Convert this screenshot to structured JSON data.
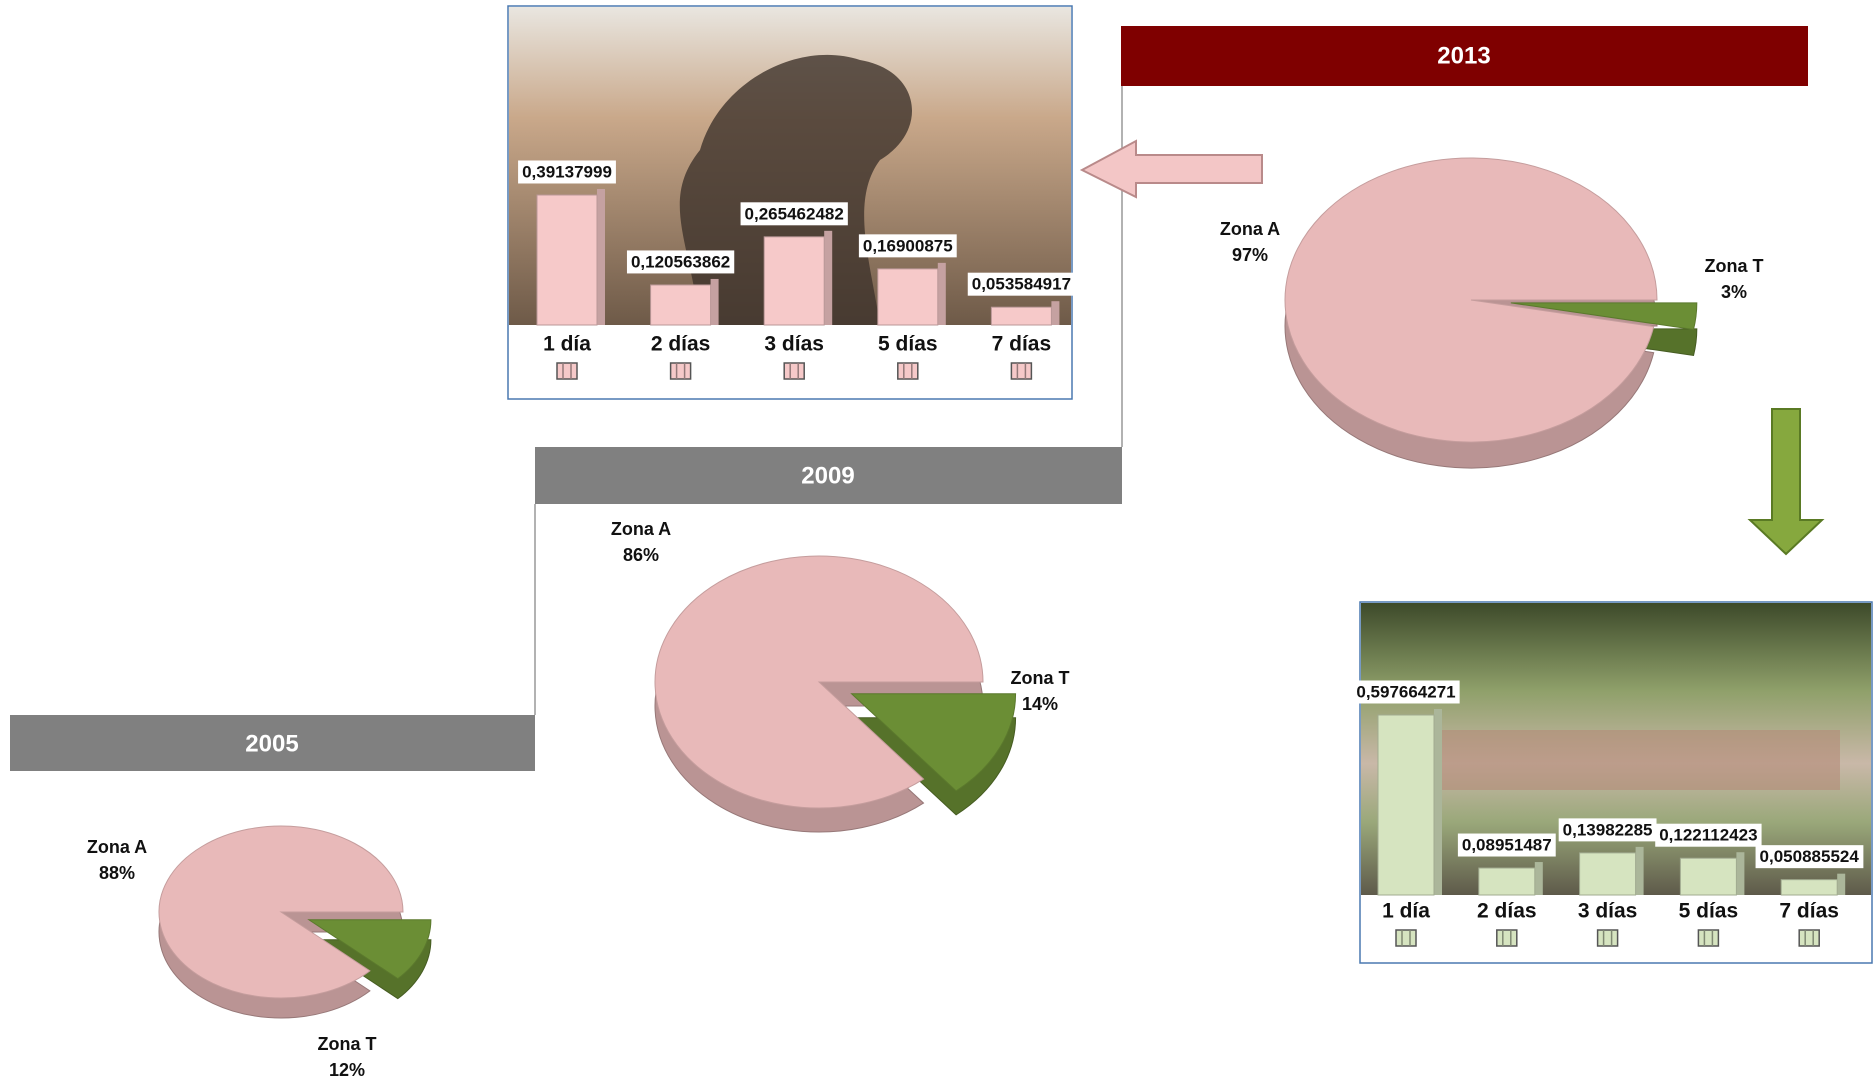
{
  "chart_data": [
    {
      "type": "pie",
      "title": "2013",
      "categories": [
        "Zona A",
        "Zona T"
      ],
      "values": [
        97,
        3
      ],
      "value_labels": [
        "97%",
        "3%"
      ],
      "colors": [
        "#e8b9b9",
        "#6b8e35"
      ]
    },
    {
      "type": "pie",
      "title": "2009",
      "categories": [
        "Zona A",
        "Zona T"
      ],
      "values": [
        86,
        14
      ],
      "value_labels": [
        "86%",
        "14%"
      ],
      "colors": [
        "#e8b9b9",
        "#6b8e35"
      ]
    },
    {
      "type": "pie",
      "title": "2005",
      "categories": [
        "Zona A",
        "Zona T"
      ],
      "values": [
        88,
        12
      ],
      "value_labels": [
        "88%",
        "12%"
      ],
      "colors": [
        "#e8b9b9",
        "#6b8e35"
      ]
    },
    {
      "type": "bar",
      "categories": [
        "1 día",
        "2 días",
        "3 días",
        "5 días",
        "7 días"
      ],
      "values": [
        0.39137999,
        0.120563862,
        0.265462482,
        0.16900875,
        0.053584917
      ],
      "value_labels": [
        "0,39137999",
        "0,120563862",
        "0,265462482",
        "0,16900875",
        "0,053584917"
      ],
      "color": "#f6c9c9"
    },
    {
      "type": "bar",
      "categories": [
        "1 día",
        "2 días",
        "3 días",
        "5 días",
        "7 días"
      ],
      "values": [
        0.597664271,
        0.08951487,
        0.13982285,
        0.122112423,
        0.050885524
      ],
      "value_labels": [
        "0,597664271",
        "0,08951487",
        "0,13982285",
        "0,122112423",
        "0,050885524"
      ],
      "color": "#d6e4c0"
    }
  ]
}
